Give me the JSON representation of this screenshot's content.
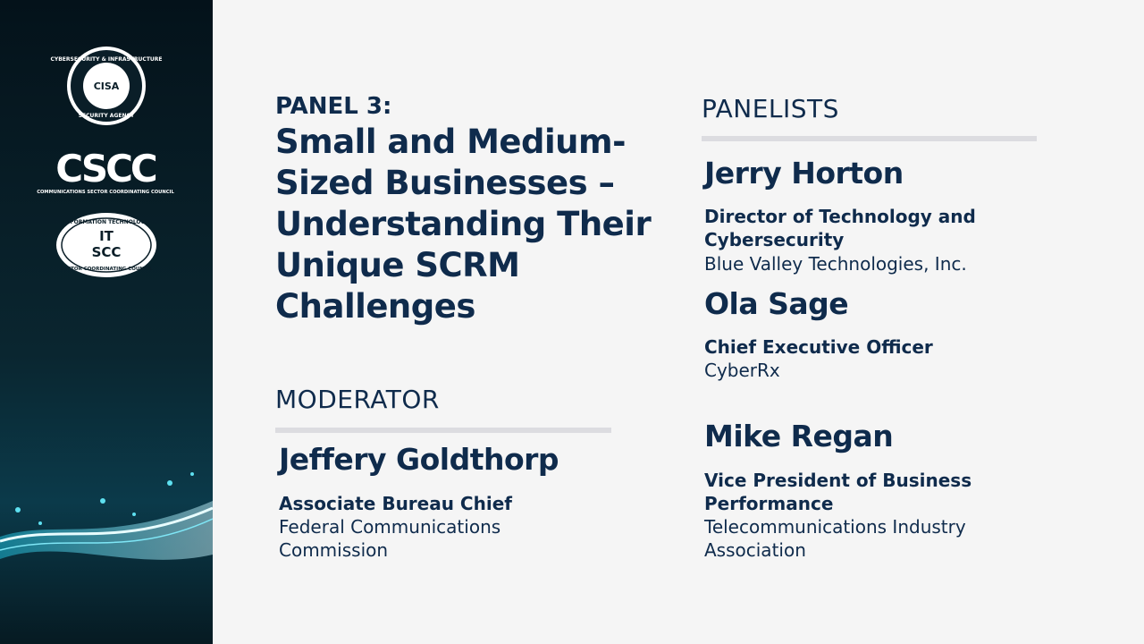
{
  "sidebar": {
    "logos": [
      {
        "top_text": "CYBERSECURITY & INFRASTRUCTURE",
        "bottom_text": "SECURITY AGENCY",
        "center_text": "CISA"
      },
      {
        "center_text": "CSCC",
        "bottom_text": "COMMUNICATIONS SECTOR COORDINATING COUNCIL"
      },
      {
        "top_text": "INFORMATION TECHNOLOGY",
        "center_text": "IT",
        "center_text_2": "SCC",
        "bottom_text": "SECTOR COORDINATING COUNCIL"
      }
    ]
  },
  "panel": {
    "label": "PANEL 3:",
    "title": "Small and Medium-Sized Businesses – Understanding Their Unique SCRM Challenges"
  },
  "moderator": {
    "heading": "MODERATOR",
    "name": "Jeffery Goldthorp",
    "role": "Associate Bureau Chief",
    "organization": "Federal Communications Commission"
  },
  "panelists": {
    "heading": "PANELISTS",
    "people": [
      {
        "name": "Jerry Horton",
        "role": "Director of Technology and Cybersecurity",
        "organization": "Blue Valley Technologies, Inc."
      },
      {
        "name": "Ola Sage",
        "role": "Chief Executive Officer",
        "organization": "CyberRx"
      },
      {
        "name": "Mike Regan",
        "role": "Vice President of Business Performance",
        "organization": "Telecommunications Industry Association"
      }
    ]
  }
}
